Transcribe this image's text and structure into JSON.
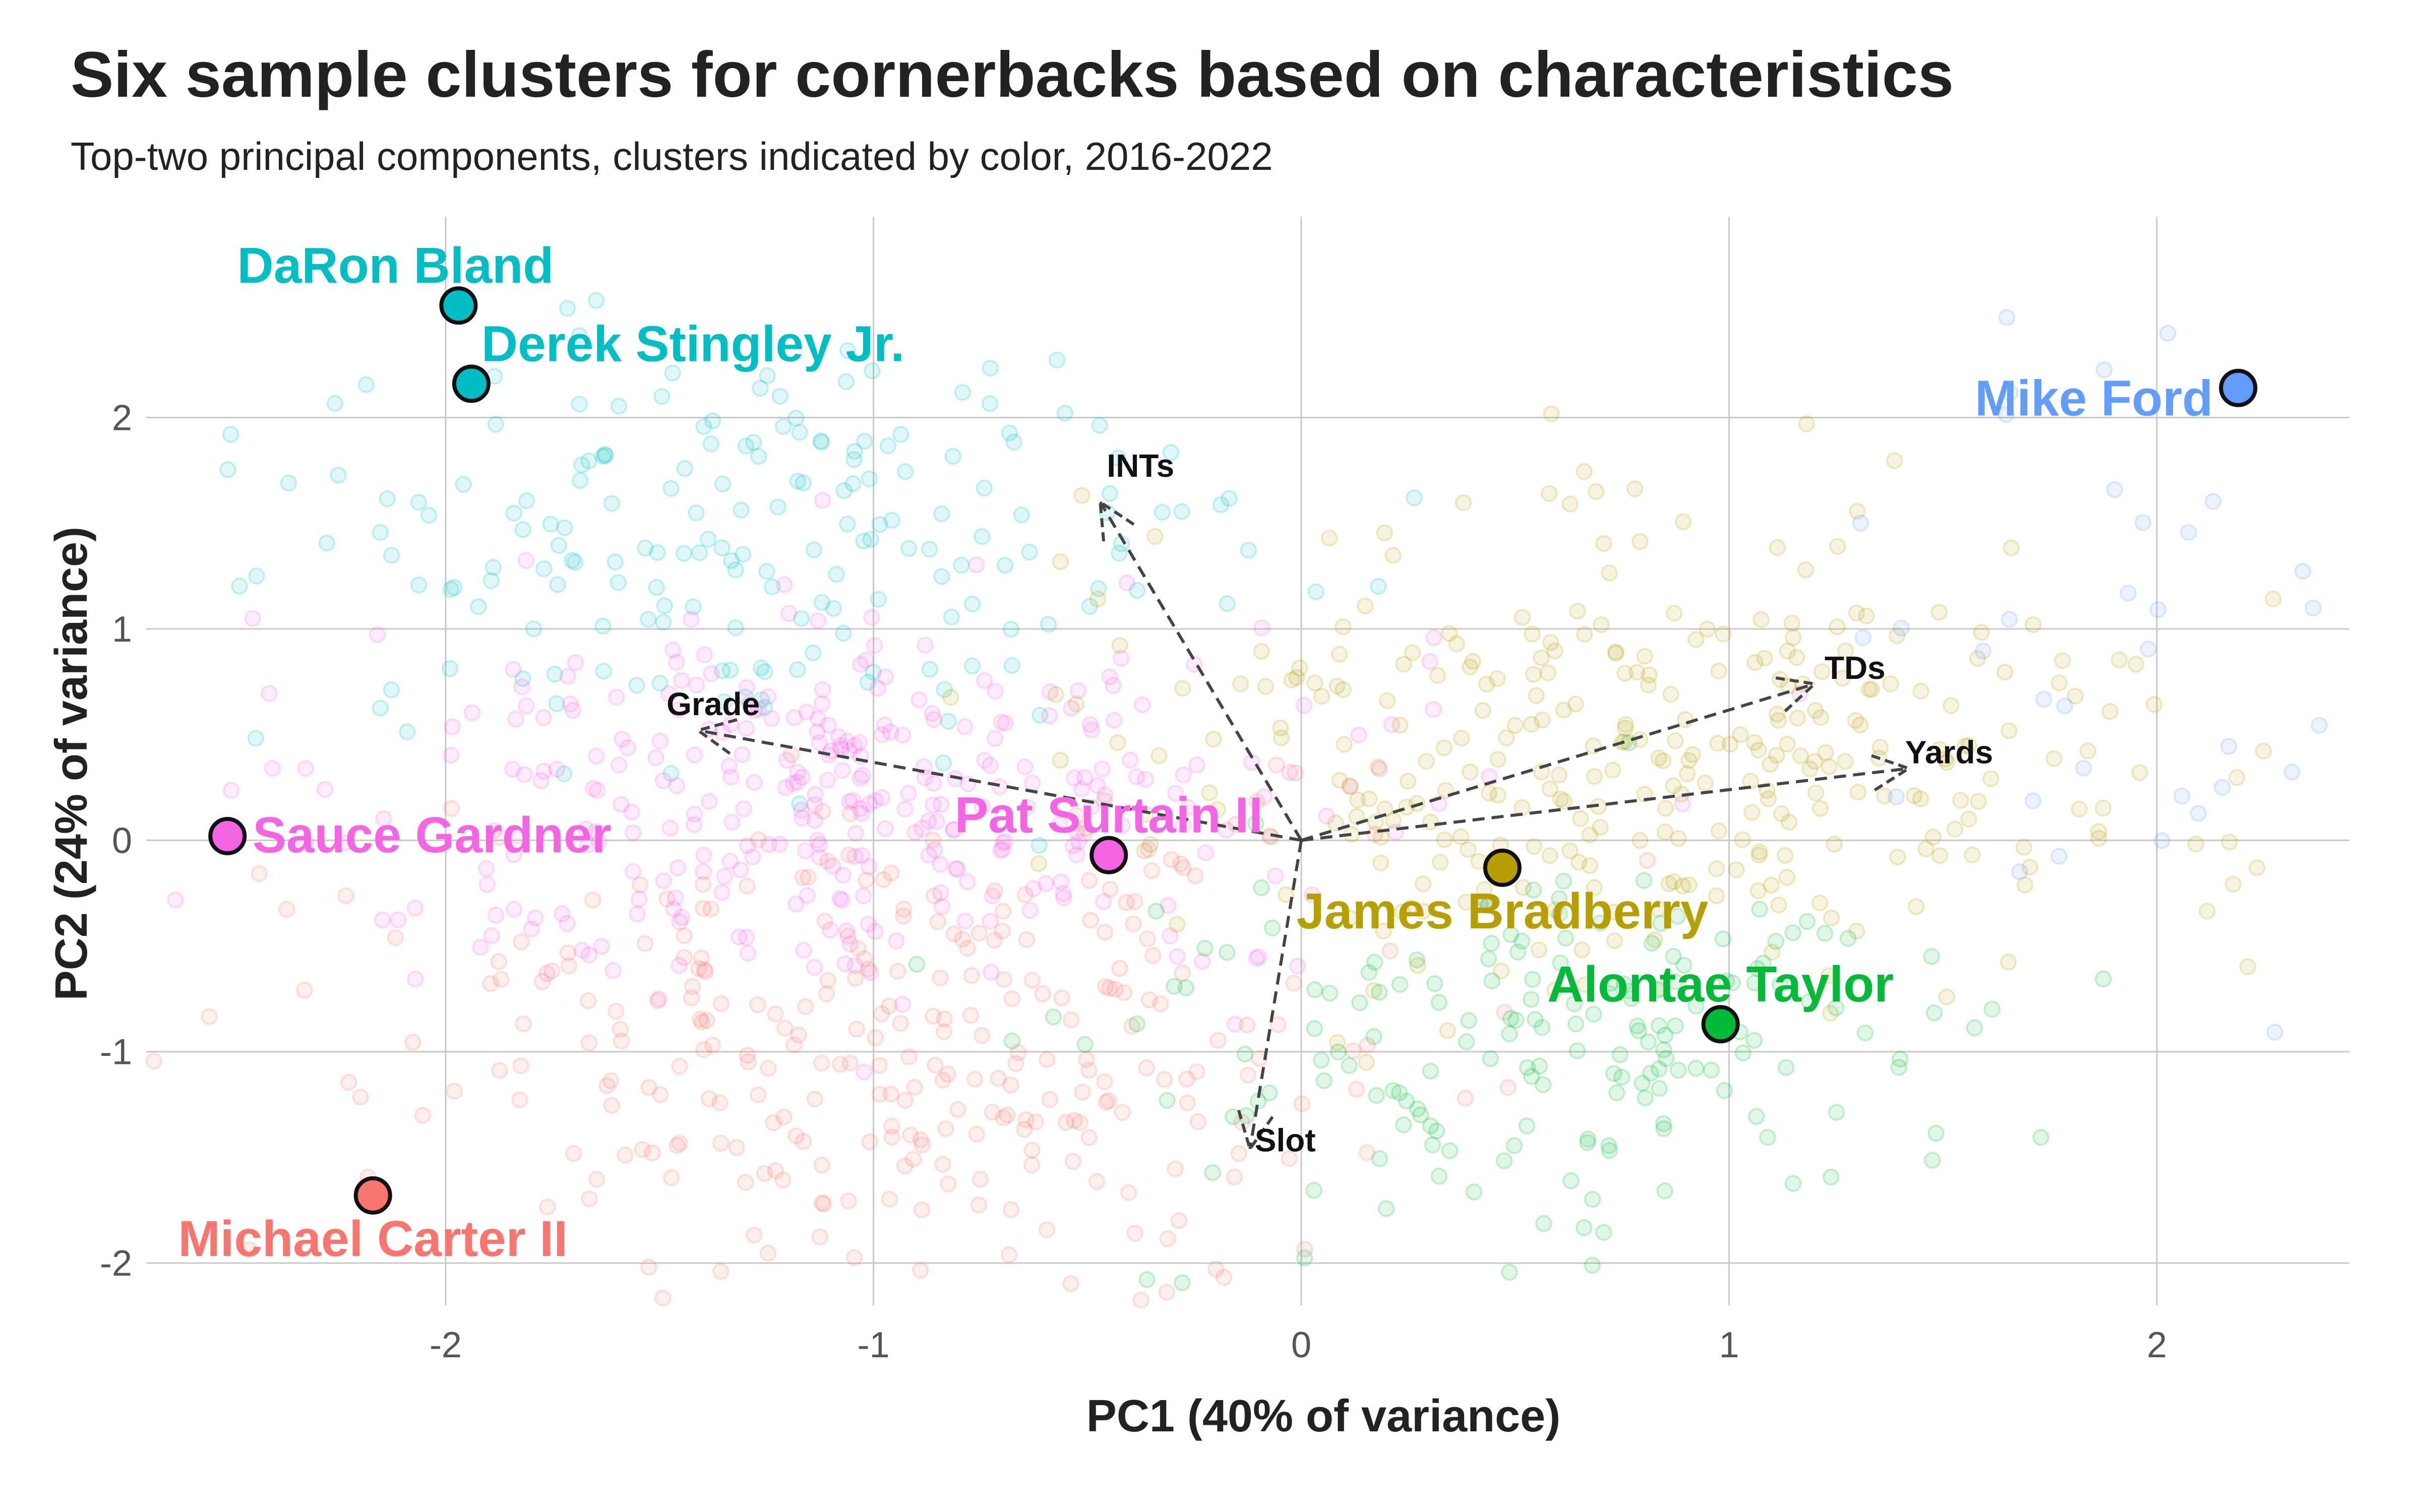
{
  "chart_data": {
    "type": "scatter",
    "title": "Six sample clusters for cornerbacks based on characteristics",
    "subtitle": "Top-two principal components, clusters indicated by color, 2016-2022",
    "xlabel": "PC1 (40% of variance)",
    "ylabel": "PC2 (24% of variance)",
    "xlim": [
      -2.7,
      2.45
    ],
    "ylim": [
      -2.2,
      2.95
    ],
    "grid": true,
    "x_ticks": [
      {
        "value": -2,
        "label": "-2"
      },
      {
        "value": -1,
        "label": "-1"
      },
      {
        "value": 0,
        "label": "0"
      },
      {
        "value": 1,
        "label": "1"
      },
      {
        "value": 2,
        "label": "2"
      }
    ],
    "y_ticks": [
      {
        "value": -2,
        "label": "-2"
      },
      {
        "value": -1,
        "label": "-1"
      },
      {
        "value": 0,
        "label": "0"
      },
      {
        "value": 1,
        "label": "1"
      },
      {
        "value": 2,
        "label": "2"
      }
    ],
    "cluster_colors": {
      "salmon": "#F8766D",
      "olive": "#B79F00",
      "green": "#00BA38",
      "teal": "#00BFC4",
      "blue": "#619CFF",
      "pink": "#F564E3"
    },
    "loadings": [
      {
        "label": "INTs",
        "x": -0.47,
        "y": 1.6
      },
      {
        "label": "Grade",
        "x": -1.41,
        "y": 0.52
      },
      {
        "label": "TDs",
        "x": 1.2,
        "y": 0.74
      },
      {
        "label": "Yards",
        "x": 1.42,
        "y": 0.34
      },
      {
        "label": "Slot",
        "x": -0.12,
        "y": -1.46
      }
    ],
    "highlighted_players": [
      {
        "name": "DaRon Bland",
        "x": -1.97,
        "y": 2.53,
        "color": "#00BFC4"
      },
      {
        "name": "Derek Stingley Jr.",
        "x": -1.94,
        "y": 2.16,
        "color": "#00BFC4"
      },
      {
        "name": "Mike Ford",
        "x": 2.19,
        "y": 2.14,
        "color": "#619CFF"
      },
      {
        "name": "Sauce Gardner",
        "x": -2.51,
        "y": 0.02,
        "color": "#F564E3"
      },
      {
        "name": "Pat Surtain II",
        "x": -0.45,
        "y": -0.07,
        "color": "#F564E3"
      },
      {
        "name": "James Bradberry",
        "x": 0.47,
        "y": -0.13,
        "color": "#B79F00"
      },
      {
        "name": "Alontae Taylor",
        "x": 0.98,
        "y": -0.87,
        "color": "#00BA38"
      },
      {
        "name": "Michael Carter II",
        "x": -2.17,
        "y": -1.68,
        "color": "#F8766D"
      }
    ],
    "background_clusters": [
      {
        "color": "#00BFC4",
        "cx": -1.3,
        "cy": 1.45,
        "sx": 0.6,
        "sy": 0.55,
        "n": 190
      },
      {
        "color": "#F564E3",
        "cx": -1.0,
        "cy": 0.15,
        "sx": 0.62,
        "sy": 0.5,
        "n": 330
      },
      {
        "color": "#F8766D",
        "cx": -1.0,
        "cy": -0.95,
        "sx": 0.62,
        "sy": 0.55,
        "n": 290
      },
      {
        "color": "#B79F00",
        "cx": 0.8,
        "cy": 0.4,
        "sx": 0.62,
        "sy": 0.55,
        "n": 330
      },
      {
        "color": "#00BA38",
        "cx": 0.55,
        "cy": -1.0,
        "sx": 0.5,
        "sy": 0.45,
        "n": 180
      },
      {
        "color": "#619CFF",
        "cx": 2.0,
        "cy": 0.9,
        "sx": 0.35,
        "sy": 0.8,
        "n": 35
      }
    ]
  }
}
